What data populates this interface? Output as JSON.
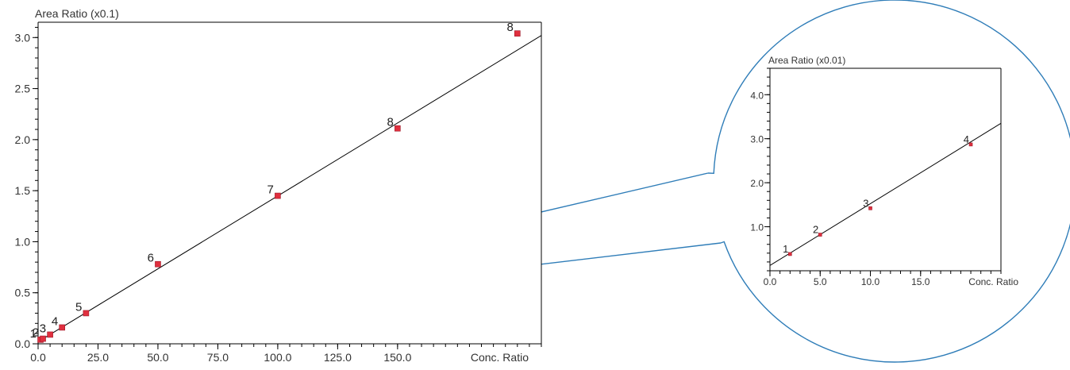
{
  "colors": {
    "point": "#e0303f",
    "line": "#000000",
    "callout": "#2f7db8",
    "axis": "#000000"
  },
  "chart_data": [
    {
      "type": "scatter",
      "title": "",
      "ylabel": "Area Ratio   (x0.1)",
      "xlabel": "Conc. Ratio",
      "xlim": [
        0,
        210
      ],
      "ylim": [
        0,
        3.15
      ],
      "xticks": [
        0,
        25,
        50,
        75,
        100,
        125,
        150
      ],
      "xtick_labels": [
        "0.0",
        "25.0",
        "50.0",
        "75.0",
        "100.0",
        "125.0",
        "150.0"
      ],
      "yticks": [
        0,
        0.5,
        1.0,
        1.5,
        2.0,
        2.5,
        3.0
      ],
      "ytick_labels": [
        "0.0",
        "0.5",
        "1.0",
        "1.5",
        "2.0",
        "2.5",
        "3.0"
      ],
      "grid": false,
      "points": [
        {
          "label": "1",
          "x": 1,
          "y": 0.04
        },
        {
          "label": "2",
          "x": 2,
          "y": 0.05
        },
        {
          "label": "3",
          "x": 5,
          "y": 0.09
        },
        {
          "label": "4",
          "x": 10,
          "y": 0.16
        },
        {
          "label": "5",
          "x": 20,
          "y": 0.3
        },
        {
          "label": "6",
          "x": 50,
          "y": 0.78
        },
        {
          "label": "7",
          "x": 100,
          "y": 1.45
        },
        {
          "label": "8",
          "x": 150,
          "y": 2.11
        }
      ],
      "extra_points": [
        {
          "label": "8",
          "x": 200,
          "y": 3.04
        }
      ],
      "fit_line": {
        "x": [
          0,
          210
        ],
        "y": [
          0.02,
          3.02
        ]
      }
    },
    {
      "type": "scatter",
      "title": "",
      "ylabel": "Area Ratio (x0.01)",
      "xlabel": "Conc. Ratio",
      "xlim": [
        0,
        23
      ],
      "ylim": [
        0,
        4.6
      ],
      "xticks": [
        0,
        5,
        10,
        15
      ],
      "xtick_labels": [
        "0.0",
        "5.0",
        "10.0",
        "15.0"
      ],
      "yticks": [
        1,
        2,
        3,
        4
      ],
      "ytick_labels": [
        "1.0",
        "2.0",
        "3.0",
        "4.0"
      ],
      "grid": false,
      "points": [
        {
          "label": "1",
          "x": 2,
          "y": 0.38
        },
        {
          "label": "2",
          "x": 5,
          "y": 0.82
        },
        {
          "label": "3",
          "x": 10,
          "y": 1.42
        },
        {
          "label": "4",
          "x": 20,
          "y": 2.87
        }
      ],
      "fit_line": {
        "x": [
          0,
          23
        ],
        "y": [
          0.12,
          3.35
        ]
      }
    }
  ]
}
